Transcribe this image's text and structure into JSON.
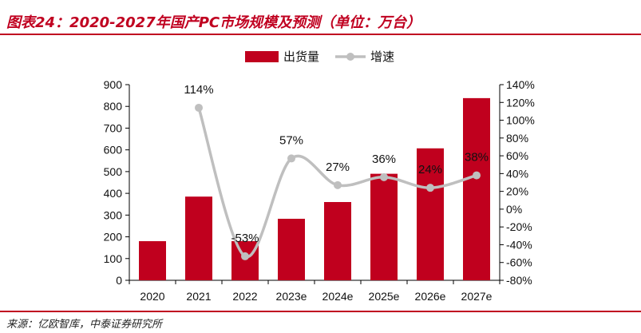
{
  "figure": {
    "title": "图表24：2020-2027年国产PC市场规模及预测（单位：万台）",
    "source": "来源：亿欧智库，中泰证券研究所"
  },
  "colors": {
    "accent": "#c00020",
    "bar": "#c0001e",
    "line": "#bfbfbf"
  },
  "chart_data": {
    "type": "bar",
    "categories": [
      "2020",
      "2021",
      "2022",
      "2023e",
      "2024e",
      "2025e",
      "2026e",
      "2027e"
    ],
    "series": [
      {
        "name": "出货量",
        "type": "bar",
        "axis": "left",
        "values": [
          180,
          385,
          180,
          283,
          360,
          490,
          607,
          838
        ]
      },
      {
        "name": "增速",
        "type": "line",
        "axis": "right",
        "values": [
          null,
          114,
          -53,
          57,
          27,
          36,
          24,
          38
        ],
        "labels": [
          "",
          "114%",
          "-53%",
          "57%",
          "27%",
          "36%",
          "24%",
          "38%"
        ]
      }
    ],
    "y_left": {
      "lim": [
        0,
        900
      ],
      "ticks": [
        "0",
        "100",
        "200",
        "300",
        "400",
        "500",
        "600",
        "700",
        "800",
        "900"
      ]
    },
    "y_right": {
      "lim": [
        -80,
        140
      ],
      "ticks": [
        "-80%",
        "-60%",
        "-40%",
        "-20%",
        "0%",
        "20%",
        "40%",
        "60%",
        "80%",
        "100%",
        "120%",
        "140%"
      ]
    },
    "legend": {
      "position": "top-center",
      "entries": [
        "出货量",
        "增速"
      ]
    },
    "grid": false
  }
}
